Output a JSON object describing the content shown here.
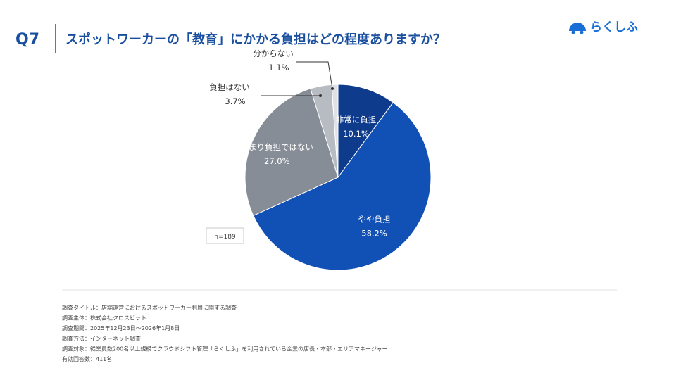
{
  "header": {
    "question_no": "Q7",
    "title": "スポットワーカーの「教育」にかかる負担はどの程度ありますか？",
    "logo": "らくしふ"
  },
  "chart_data": {
    "type": "pie",
    "categories": [
      "非常に負担",
      "やや負担",
      "あまり負担ではない",
      "負担はない",
      "分からない"
    ],
    "values": [
      10.1,
      58.2,
      27.0,
      3.7,
      1.1
    ],
    "value_labels": [
      "10.1%",
      "58.2%",
      "27.0%",
      "3.7%",
      "1.1%"
    ],
    "colors": [
      "#0e3b8c",
      "#1150b4",
      "#878d96",
      "#b7bbc2",
      "#dfe1e4"
    ]
  },
  "sample_size": "n=189",
  "notes": [
    "調査タイトル：店舗運営におけるスポットワーカー利用に関する調査",
    "調査主体：株式会社クロスビット",
    "調査期間：2025年12月23日〜2026年1月8日",
    "調査方法：インターネット調査",
    "調査対象：従業員数200名以上規模でクラウドシフト管理「らくしふ」を利用されている企業の店長・本部・エリアマネージャー",
    "有効回答数：411名"
  ]
}
